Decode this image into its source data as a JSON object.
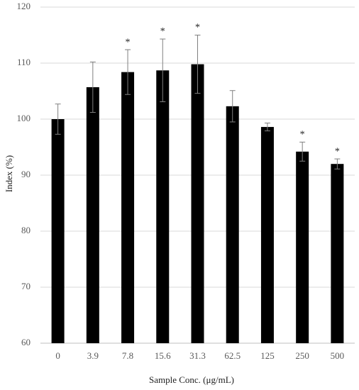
{
  "chart_data": {
    "type": "bar",
    "x_label": "Sample Conc. (μg/mL)",
    "y_label": "Index (%)",
    "categories": [
      "0",
      "3.9",
      "7.8",
      "15.6",
      "31.3",
      "62.5",
      "125",
      "250",
      "500"
    ],
    "values": [
      100,
      105.7,
      108.4,
      108.7,
      109.8,
      102.3,
      98.6,
      94.2,
      92.0
    ],
    "errors": [
      2.7,
      4.5,
      4.0,
      5.6,
      5.2,
      2.8,
      0.7,
      1.7,
      0.9
    ],
    "significance": [
      null,
      null,
      "*",
      "*",
      "*",
      null,
      null,
      "*",
      "*"
    ],
    "color": "#000000",
    "error_color": "#808080",
    "ylim": [
      60,
      120
    ],
    "yticks": [
      60,
      70,
      80,
      90,
      100,
      110,
      120
    ],
    "grid": true
  }
}
